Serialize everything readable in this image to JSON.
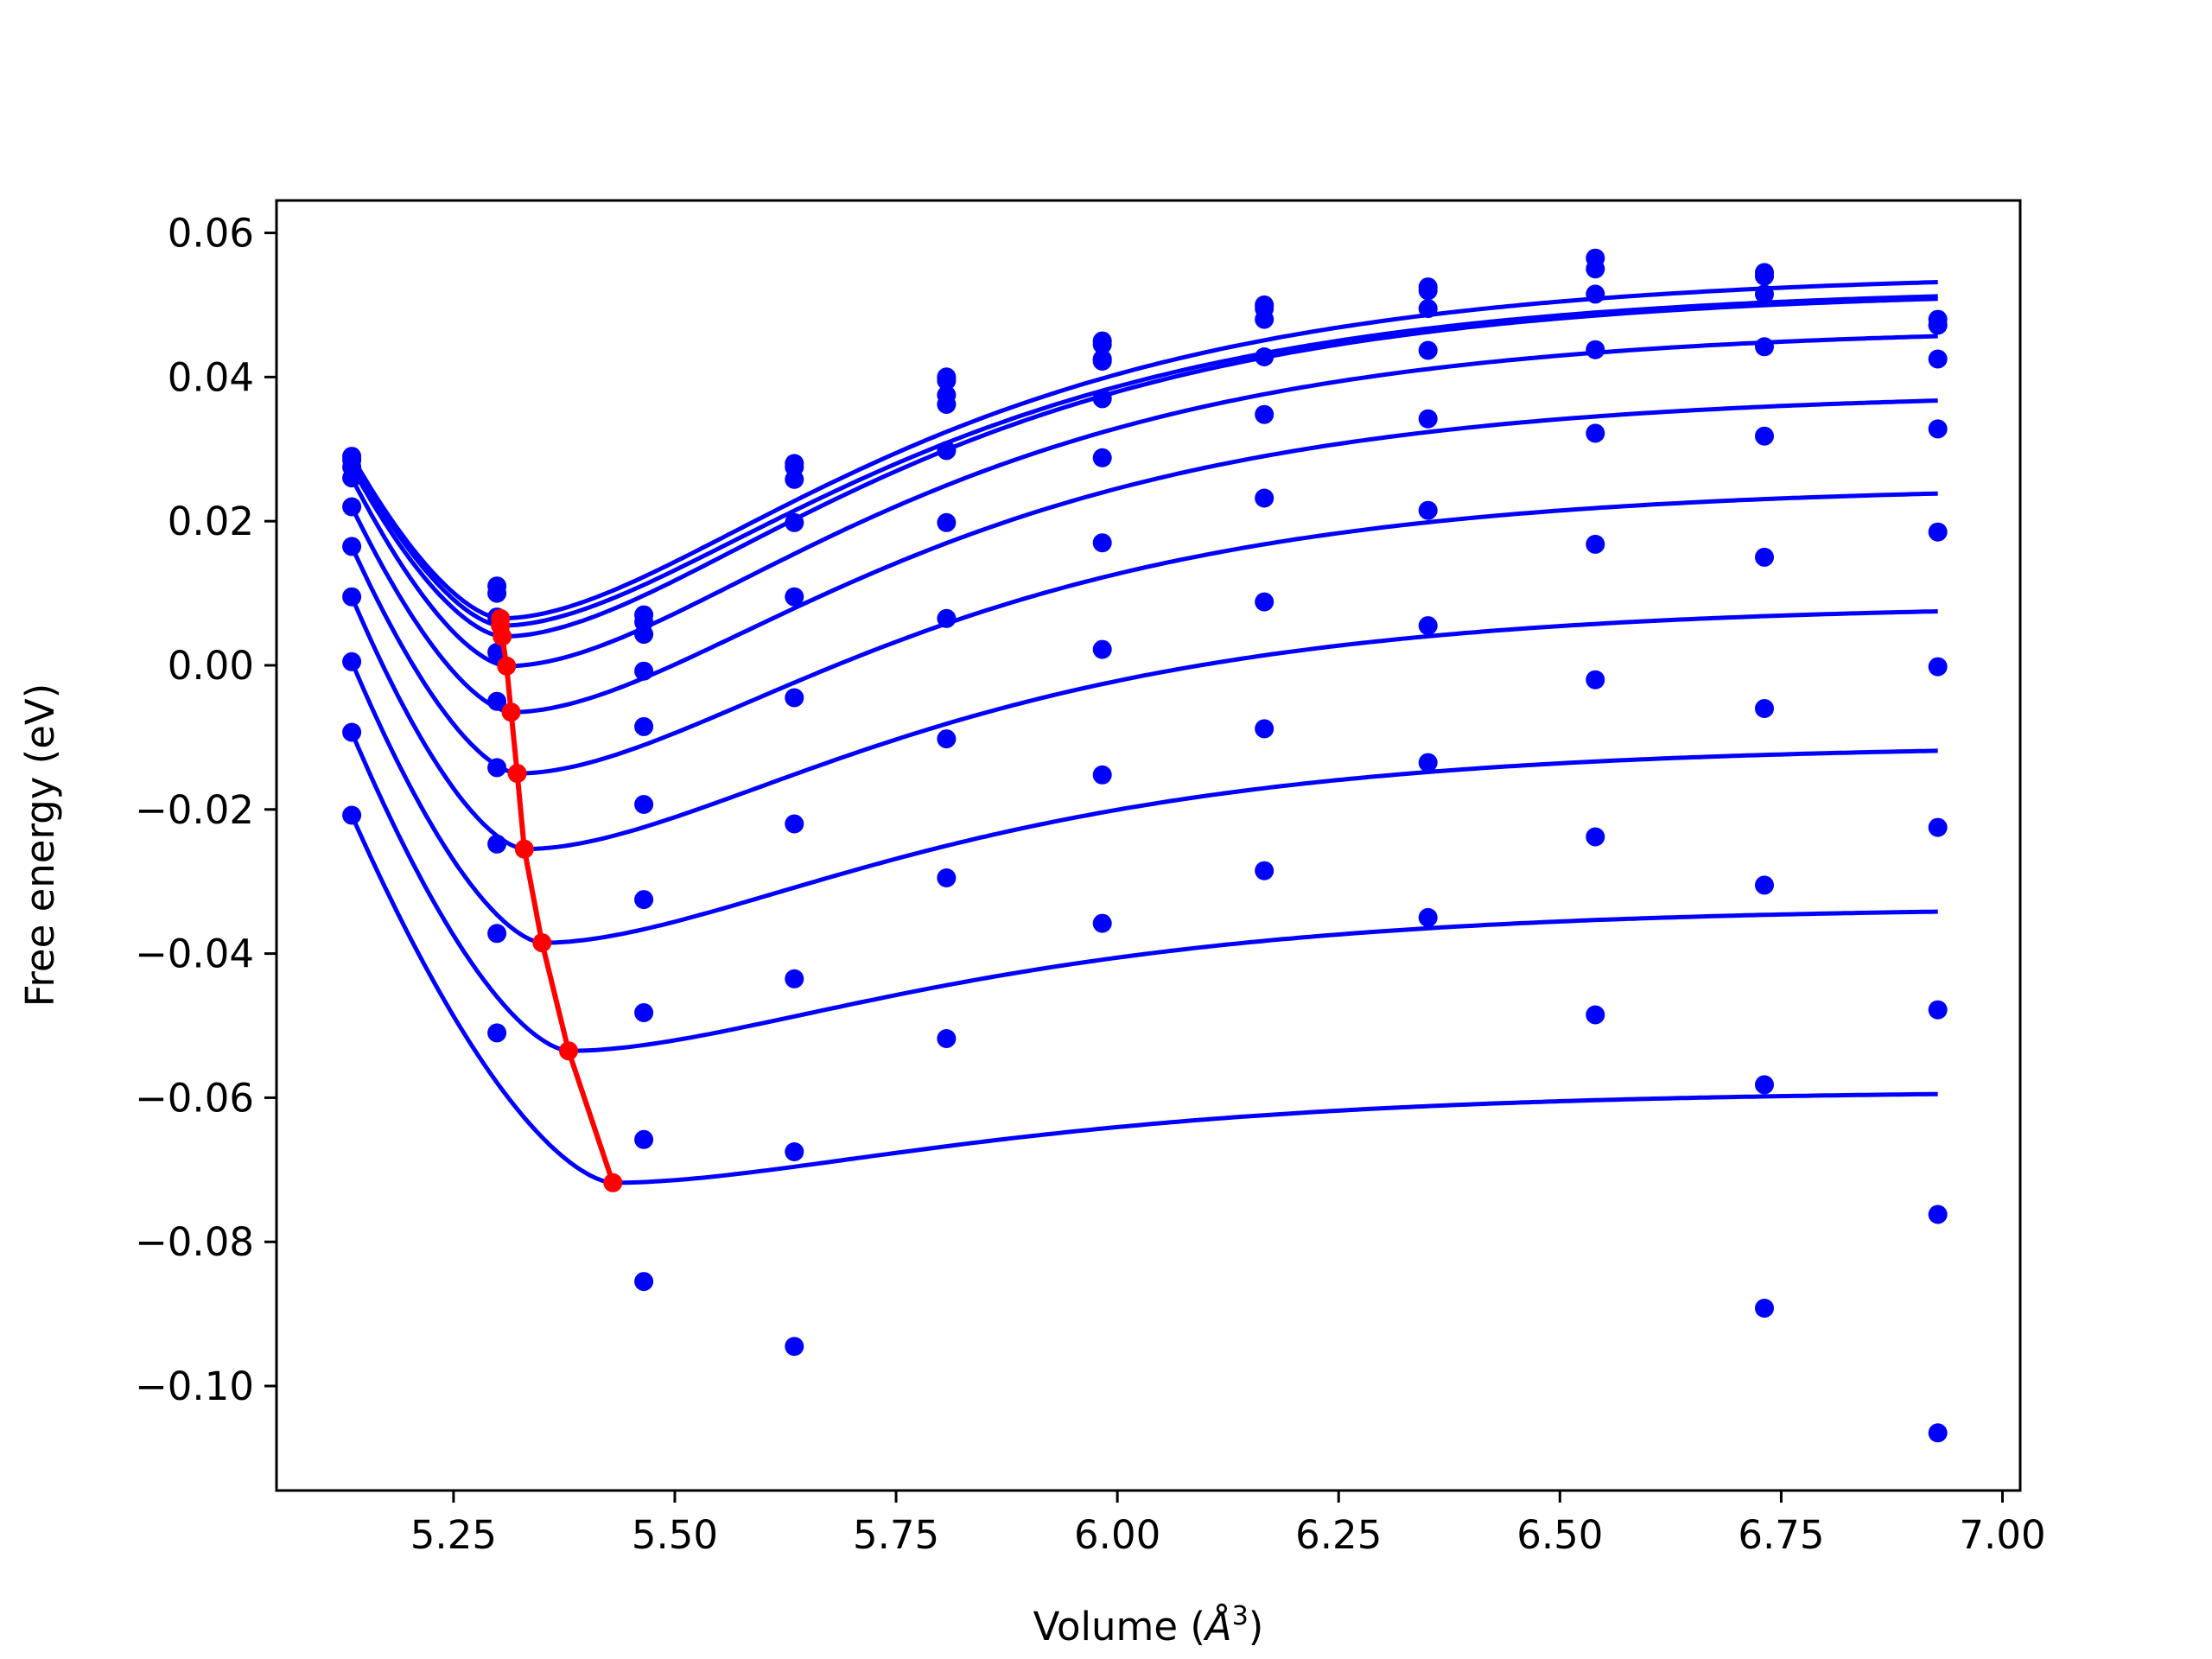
{
  "chart_data": {
    "type": "line",
    "title": "",
    "xlabel": "Volume (Å³)",
    "xlabel_parts": {
      "prefix": "Volume (",
      "symbol": "Å",
      "superscript": "3",
      "suffix": ")"
    },
    "ylabel": "Free energy (eV)",
    "xlim": [
      5.05,
      7.02
    ],
    "ylim": [
      -0.1145,
      0.0645
    ],
    "x_ticks": [
      5.25,
      5.5,
      5.75,
      6.0,
      6.25,
      6.5,
      6.75,
      7.0
    ],
    "x_tick_labels": [
      "5.25",
      "5.50",
      "5.75",
      "6.00",
      "6.25",
      "6.50",
      "6.75",
      "7.00"
    ],
    "y_ticks": [
      0.06,
      0.04,
      0.02,
      0.0,
      -0.02,
      -0.04,
      -0.06,
      -0.08,
      -0.1
    ],
    "y_tick_labels": [
      "0.06",
      "0.04",
      "0.02",
      "0.00",
      "−0.02",
      "−0.04",
      "−0.06",
      "−0.08",
      "−0.10"
    ],
    "grid": false,
    "colors": {
      "curves": "#0000ff",
      "points": "#0000ff",
      "minimum_path": "#ff0000"
    },
    "volumes": [
      5.135,
      5.299,
      5.465,
      5.635,
      5.807,
      5.983,
      6.166,
      6.351,
      6.54,
      6.731,
      6.927
    ],
    "series": [
      {
        "fit": {
          "E0": 0.0065,
          "V0": 5.303,
          "Einf": 0.0545,
          "w": 0.38,
          "t": 0.01
        },
        "points": [
          0.029,
          0.011,
          0.007,
          0.028,
          0.04,
          0.045,
          0.05,
          0.0525,
          0.0565,
          0.0545,
          0.048
        ]
      },
      {
        "fit": {
          "E0": 0.0055,
          "V0": 5.303,
          "Einf": 0.0525,
          "w": 0.38,
          "t": 0.013
        },
        "points": [
          0.0285,
          0.01,
          0.006,
          0.0275,
          0.0395,
          0.0445,
          0.0495,
          0.052,
          0.055,
          0.054,
          0.0472
        ]
      },
      {
        "fit": {
          "E0": 0.004,
          "V0": 5.305,
          "Einf": 0.0522,
          "w": 0.38,
          "t": 0.016
        },
        "points": [
          0.0275,
          0.0067,
          0.0043,
          0.0258,
          0.0375,
          0.0425,
          0.048,
          0.0495,
          0.0515,
          0.0515,
          0.0472
        ]
      },
      {
        "fit": {
          "E0": -0.0001,
          "V0": 5.31,
          "Einf": 0.047,
          "w": 0.38,
          "t": 0.022
        },
        "points": [
          0.026,
          0.0018,
          -0.0008,
          0.0198,
          0.0362,
          0.0422,
          0.0428,
          0.0437,
          0.0438,
          0.0442,
          0.0425
        ]
      },
      {
        "fit": {
          "E0": -0.0065,
          "V0": 5.315,
          "Einf": 0.038,
          "w": 0.38,
          "t": 0.03
        },
        "points": [
          0.022,
          -0.005,
          -0.0085,
          0.0095,
          0.0298,
          0.037,
          0.0348,
          0.0342,
          0.0322,
          0.0318,
          0.0328
        ]
      },
      {
        "fit": {
          "E0": -0.015,
          "V0": 5.322,
          "Einf": 0.025,
          "w": 0.38,
          "t": 0.038
        },
        "points": [
          0.0165,
          -0.0142,
          -0.0193,
          -0.0045,
          0.0198,
          0.0288,
          0.0232,
          0.0215,
          0.0168,
          0.015,
          0.0185
        ]
      },
      {
        "fit": {
          "E0": -0.0255,
          "V0": 5.33,
          "Einf": 0.0085,
          "w": 0.38,
          "t": 0.046
        },
        "points": [
          0.0095,
          -0.0248,
          -0.0325,
          -0.022,
          0.0065,
          0.017,
          0.0088,
          0.0055,
          -0.002,
          -0.006,
          -0.0002
        ]
      },
      {
        "fit": {
          "E0": -0.0385,
          "V0": 5.35,
          "Einf": -0.011,
          "w": 0.38,
          "t": 0.055
        },
        "points": [
          0.0005,
          -0.0372,
          -0.0482,
          -0.0435,
          -0.0102,
          0.0022,
          -0.0088,
          -0.0135,
          -0.0238,
          -0.0305,
          -0.0225
        ]
      },
      {
        "fit": {
          "E0": -0.0535,
          "V0": 5.38,
          "Einf": -0.0335,
          "w": 0.38,
          "t": 0.065
        },
        "points": [
          -0.0093,
          -0.051,
          -0.0658,
          -0.0675,
          -0.0295,
          -0.0152,
          -0.0285,
          -0.035,
          -0.0485,
          -0.0582,
          -0.0478
        ]
      },
      {
        "fit": {
          "E0": -0.0718,
          "V0": 5.43,
          "Einf": -0.059,
          "w": 0.38,
          "t": 0.075
        },
        "points": [
          -0.0208,
          null,
          -0.0855,
          -0.0945,
          -0.0518,
          -0.0358,
          null,
          null,
          null,
          -0.0892,
          -0.0762
        ]
      }
    ],
    "extra_points": [
      {
        "x": 6.927,
        "y": -0.1065
      }
    ],
    "minimum_path": {
      "x": [
        5.303,
        5.303,
        5.305,
        5.31,
        5.315,
        5.322,
        5.33,
        5.35,
        5.38,
        5.43
      ],
      "y": [
        0.0065,
        0.0055,
        0.004,
        -0.0001,
        -0.0065,
        -0.015,
        -0.0255,
        -0.0385,
        -0.0535,
        -0.0718
      ]
    }
  }
}
